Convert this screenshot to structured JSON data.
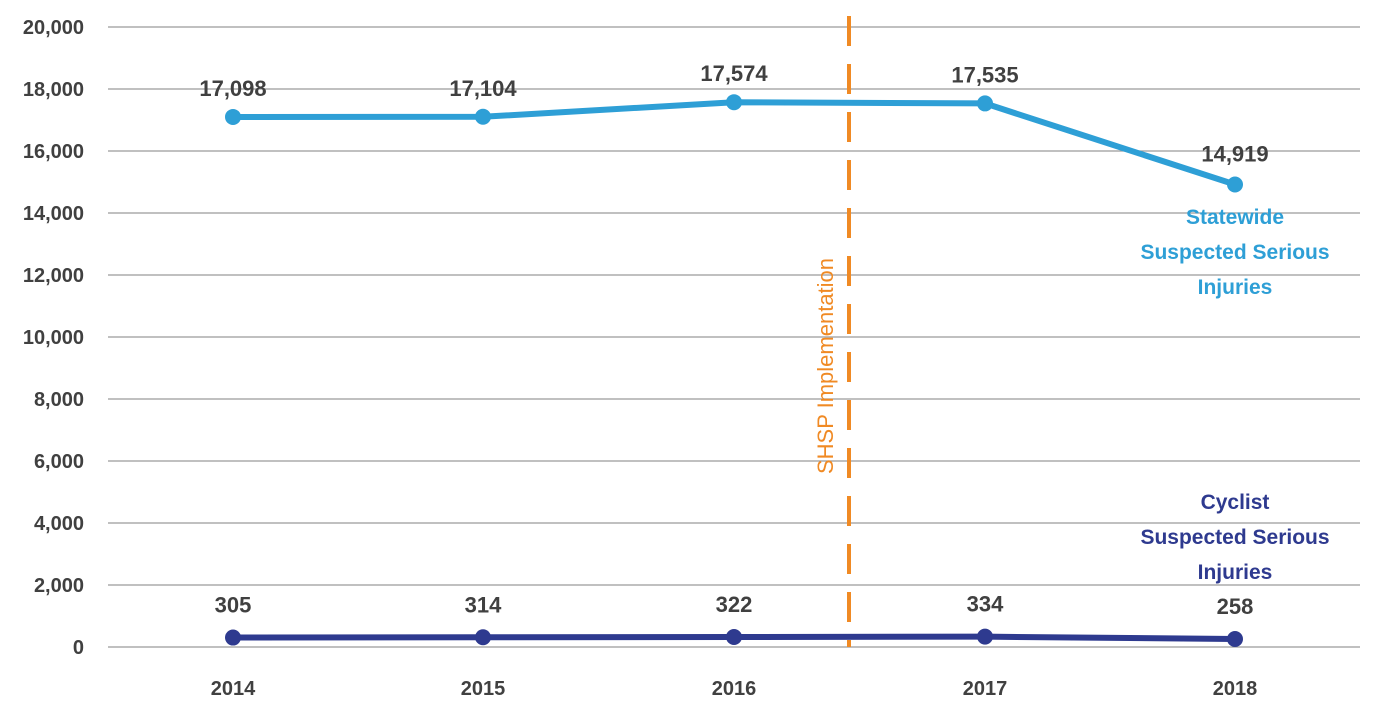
{
  "chart_data": {
    "type": "line",
    "categories": [
      "2014",
      "2015",
      "2016",
      "2017",
      "2018"
    ],
    "ylim": [
      0,
      20000
    ],
    "yticks": [
      "0",
      "2,000",
      "4,000",
      "6,000",
      "8,000",
      "10,000",
      "12,000",
      "14,000",
      "16,000",
      "18,000",
      "20,000"
    ],
    "grid": true,
    "series": [
      {
        "name_lines": [
          "Statewide",
          "Suspected Serious",
          "Injuries"
        ],
        "values": [
          17098,
          17104,
          17574,
          17535,
          14919
        ],
        "value_labels": [
          "17,098",
          "17,104",
          "17,574",
          "17,535",
          "14,919"
        ],
        "color": "#2E9FD6"
      },
      {
        "name_lines": [
          "Cyclist",
          "Suspected Serious",
          "Injuries"
        ],
        "values": [
          305,
          314,
          322,
          334,
          258
        ],
        "value_labels": [
          "305",
          "314",
          "322",
          "334",
          "258"
        ],
        "color": "#2E3A8F"
      }
    ],
    "annotation": {
      "label": "SHSP Implementation",
      "x_position": "between 2016 and 2017",
      "color": "#F08A24",
      "style": "dashed"
    }
  }
}
